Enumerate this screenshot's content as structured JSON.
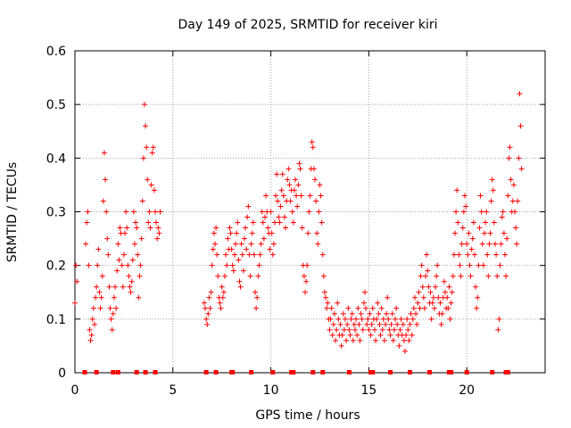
{
  "chart_data": {
    "type": "scatter",
    "title": "Day 149 of 2025, SRMTID for receiver kiri",
    "xlabel": "GPS time / hours",
    "ylabel": "SRMTID / TECUs",
    "xlim": [
      0,
      24
    ],
    "ylim": [
      0,
      0.6
    ],
    "x_ticks": [
      "0",
      "5",
      "10",
      "15",
      "20"
    ],
    "x_tick_values": [
      0,
      5,
      10,
      15,
      20
    ],
    "y_ticks": [
      "0",
      "0.1",
      "0.2",
      "0.3",
      "0.4",
      "0.5",
      "0.6"
    ],
    "y_tick_values": [
      0,
      0.1,
      0.2,
      0.3,
      0.4,
      0.5,
      0.6
    ],
    "grid": true,
    "marker": "+",
    "series": [
      {
        "name": "SRMTID",
        "color": "#ff0000",
        "segments": [
          {
            "x": [
              0.0,
              0.05,
              0.1
            ],
            "y": [
              0.13,
              0.2,
              0.17
            ]
          },
          {
            "x": [
              0.55,
              0.6,
              0.65,
              0.7,
              0.75,
              0.8,
              0.85,
              0.9,
              0.95,
              1.0,
              1.05,
              1.1,
              1.15,
              1.2,
              1.25,
              1.3,
              1.35,
              1.4,
              1.45,
              1.5,
              1.55,
              1.6,
              1.65,
              1.7,
              1.75,
              1.8,
              1.85,
              1.9,
              1.95,
              2.0,
              2.05,
              2.1,
              2.15,
              2.2,
              2.25,
              2.3,
              2.35,
              2.4,
              2.45,
              2.5,
              2.55,
              2.6,
              2.65,
              2.7,
              2.75,
              2.8,
              2.85,
              2.9,
              2.95,
              3.0,
              3.05,
              3.1,
              3.15,
              3.2,
              3.25,
              3.3,
              3.35,
              3.4,
              3.45,
              3.5,
              3.55,
              3.6,
              3.65,
              3.7,
              3.75,
              3.8,
              3.85,
              3.9,
              3.95,
              4.0,
              4.05,
              4.1,
              4.15,
              4.2,
              4.25,
              4.3,
              4.35
            ],
            "y": [
              0.24,
              0.28,
              0.3,
              0.2,
              0.08,
              0.06,
              0.07,
              0.1,
              0.12,
              0.09,
              0.14,
              0.16,
              0.2,
              0.23,
              0.15,
              0.12,
              0.14,
              0.18,
              0.32,
              0.41,
              0.36,
              0.3,
              0.25,
              0.22,
              0.16,
              0.12,
              0.1,
              0.08,
              0.11,
              0.14,
              0.16,
              0.12,
              0.19,
              0.24,
              0.21,
              0.27,
              0.26,
              0.2,
              0.16,
              0.22,
              0.26,
              0.3,
              0.27,
              0.2,
              0.18,
              0.16,
              0.15,
              0.17,
              0.21,
              0.3,
              0.24,
              0.28,
              0.27,
              0.22,
              0.14,
              0.18,
              0.2,
              0.25,
              0.32,
              0.4,
              0.5,
              0.46,
              0.42,
              0.36,
              0.28,
              0.3,
              0.27,
              0.35,
              0.41,
              0.42,
              0.34,
              0.3,
              0.28,
              0.25,
              0.27,
              0.26,
              0.3
            ]
          },
          {
            "x": [
              6.6,
              6.65,
              6.7,
              6.75,
              6.8,
              6.85,
              6.9,
              6.95,
              7.0,
              7.05,
              7.1,
              7.15,
              7.2,
              7.25,
              7.3,
              7.35,
              7.4,
              7.45,
              7.5,
              7.55,
              7.6,
              7.65,
              7.7,
              7.75,
              7.8,
              7.85,
              7.9,
              7.95,
              8.0,
              8.05,
              8.1,
              8.15,
              8.2,
              8.25,
              8.3,
              8.35,
              8.4,
              8.45,
              8.5,
              8.55,
              8.6,
              8.65,
              8.7,
              8.75,
              8.8,
              8.85,
              8.9,
              8.95,
              9.0,
              9.05,
              9.1,
              9.15,
              9.2,
              9.25,
              9.3,
              9.35,
              9.4,
              9.45,
              9.5,
              9.55,
              9.6,
              9.65,
              9.7,
              9.75,
              9.8,
              9.85,
              9.9,
              9.95,
              10.0,
              10.05,
              10.1,
              10.15,
              10.2,
              10.25,
              10.3,
              10.35,
              10.4,
              10.45,
              10.5,
              10.55,
              10.6,
              10.65,
              10.7,
              10.75,
              10.8,
              10.85,
              10.9,
              10.95,
              11.0,
              11.05,
              11.1,
              11.15,
              11.2,
              11.25,
              11.3,
              11.35,
              11.4,
              11.45,
              11.5,
              11.55,
              11.6,
              11.65,
              11.7,
              11.75,
              11.8,
              11.85,
              11.9,
              11.95,
              12.0,
              12.05,
              12.1,
              12.15,
              12.2,
              12.25,
              12.3,
              12.35,
              12.4,
              12.45,
              12.5,
              12.55,
              12.6,
              12.65,
              12.7,
              12.75,
              12.8,
              12.85,
              12.9,
              12.95
            ],
            "y": [
              0.13,
              0.12,
              0.1,
              0.09,
              0.11,
              0.14,
              0.12,
              0.15,
              0.2,
              0.23,
              0.26,
              0.24,
              0.27,
              0.22,
              0.18,
              0.14,
              0.13,
              0.12,
              0.16,
              0.14,
              0.15,
              0.18,
              0.22,
              0.2,
              0.25,
              0.23,
              0.27,
              0.26,
              0.23,
              0.2,
              0.19,
              0.22,
              0.24,
              0.26,
              0.28,
              0.21,
              0.17,
              0.16,
              0.24,
              0.22,
              0.19,
              0.25,
              0.27,
              0.23,
              0.29,
              0.31,
              0.22,
              0.18,
              0.24,
              0.26,
              0.28,
              0.22,
              0.15,
              0.12,
              0.14,
              0.18,
              0.2,
              0.22,
              0.24,
              0.3,
              0.28,
              0.25,
              0.29,
              0.33,
              0.3,
              0.27,
              0.26,
              0.23,
              0.3,
              0.26,
              0.22,
              0.24,
              0.28,
              0.33,
              0.37,
              0.32,
              0.29,
              0.28,
              0.31,
              0.34,
              0.37,
              0.33,
              0.29,
              0.27,
              0.32,
              0.36,
              0.38,
              0.35,
              0.32,
              0.34,
              0.3,
              0.28,
              0.34,
              0.36,
              0.33,
              0.31,
              0.35,
              0.39,
              0.38,
              0.33,
              0.27,
              0.2,
              0.18,
              0.15,
              0.17,
              0.2,
              0.26,
              0.3,
              0.33,
              0.38,
              0.43,
              0.42,
              0.38,
              0.36,
              0.32,
              0.26,
              0.24,
              0.3,
              0.35,
              0.33,
              0.28,
              0.22,
              0.18,
              0.15,
              0.14,
              0.12,
              0.13,
              0.1
            ]
          },
          {
            "x": [
              13.0,
              13.05,
              13.1,
              13.15,
              13.2,
              13.25,
              13.3,
              13.35,
              13.4,
              13.45,
              13.5,
              13.55,
              13.6,
              13.65,
              13.7,
              13.75,
              13.8,
              13.85,
              13.9,
              13.95,
              14.0,
              14.05,
              14.1,
              14.15,
              14.2,
              14.25,
              14.3,
              14.35,
              14.4,
              14.45,
              14.5,
              14.55,
              14.6,
              14.65,
              14.7,
              14.75,
              14.8,
              14.85,
              14.9,
              14.95,
              15.0,
              15.05,
              15.1,
              15.15,
              15.2,
              15.25,
              15.3,
              15.35,
              15.4,
              15.45,
              15.5,
              15.55,
              15.6,
              15.65,
              15.7,
              15.75,
              15.8,
              15.85,
              15.9,
              15.95,
              16.0,
              16.05,
              16.1,
              16.15,
              16.2,
              16.25,
              16.3,
              16.35,
              16.4,
              16.45,
              16.5,
              16.55,
              16.6,
              16.65,
              16.7,
              16.75,
              16.8,
              16.85,
              16.9,
              16.95,
              17.0,
              17.05,
              17.1,
              17.15,
              17.2,
              17.25,
              17.3,
              17.35,
              17.4,
              17.45,
              17.5,
              17.55,
              17.6,
              17.65,
              17.7,
              17.75,
              17.8,
              17.85,
              17.9,
              17.95,
              18.0,
              18.05,
              18.1,
              18.15,
              18.2,
              18.25,
              18.3,
              18.35,
              18.4,
              18.45,
              18.5,
              18.55,
              18.6,
              18.65,
              18.7,
              18.75,
              18.8,
              18.85,
              18.9,
              18.95
            ],
            "y": [
              0.08,
              0.1,
              0.12,
              0.07,
              0.09,
              0.11,
              0.06,
              0.08,
              0.13,
              0.1,
              0.07,
              0.09,
              0.05,
              0.07,
              0.11,
              0.08,
              0.1,
              0.06,
              0.09,
              0.12,
              0.08,
              0.07,
              0.1,
              0.11,
              0.06,
              0.09,
              0.08,
              0.1,
              0.07,
              0.12,
              0.09,
              0.06,
              0.11,
              0.1,
              0.08,
              0.13,
              0.15,
              0.12,
              0.09,
              0.1,
              0.08,
              0.11,
              0.07,
              0.09,
              0.12,
              0.1,
              0.08,
              0.06,
              0.1,
              0.13,
              0.11,
              0.09,
              0.07,
              0.12,
              0.08,
              0.1,
              0.06,
              0.09,
              0.11,
              0.14,
              0.1,
              0.08,
              0.07,
              0.09,
              0.11,
              0.06,
              0.08,
              0.1,
              0.12,
              0.09,
              0.07,
              0.05,
              0.08,
              0.1,
              0.07,
              0.09,
              0.06,
              0.04,
              0.07,
              0.1,
              0.08,
              0.06,
              0.09,
              0.11,
              0.07,
              0.1,
              0.12,
              0.14,
              0.11,
              0.09,
              0.13,
              0.15,
              0.12,
              0.18,
              0.2,
              0.16,
              0.14,
              0.12,
              0.18,
              0.22,
              0.19,
              0.16,
              0.13,
              0.15,
              0.1,
              0.13,
              0.14,
              0.12,
              0.16,
              0.18,
              0.2,
              0.14,
              0.11,
              0.13,
              0.09,
              0.11,
              0.14,
              0.17,
              0.15,
              0.12
            ]
          },
          {
            "x": [
              19.0,
              19.05,
              19.1,
              19.15,
              19.2,
              19.25,
              19.3,
              19.35,
              19.4,
              19.45,
              19.5,
              19.55,
              19.6,
              19.65,
              19.7,
              19.75,
              19.8,
              19.85,
              19.9,
              19.95,
              20.0,
              20.05,
              20.1,
              20.15,
              20.2,
              20.25,
              20.3,
              20.35,
              20.4,
              20.45,
              20.5,
              20.55,
              20.6,
              20.65,
              20.7,
              20.75,
              20.8,
              20.85,
              20.9,
              20.95,
              21.0,
              21.05,
              21.1,
              21.15,
              21.2,
              21.25,
              21.3,
              21.35,
              21.4,
              21.45,
              21.5,
              21.55,
              21.6,
              21.65,
              21.7,
              21.75,
              21.8,
              21.85,
              21.9,
              21.95,
              22.0,
              22.05,
              22.1,
              22.15,
              22.2,
              22.25,
              22.3,
              22.35,
              22.4,
              22.45,
              22.5,
              22.55,
              22.6,
              22.65,
              22.7,
              22.75,
              22.8
            ],
            "y": [
              0.14,
              0.12,
              0.16,
              0.1,
              0.13,
              0.15,
              0.18,
              0.22,
              0.26,
              0.3,
              0.34,
              0.28,
              0.22,
              0.2,
              0.18,
              0.24,
              0.27,
              0.3,
              0.33,
              0.31,
              0.24,
              0.22,
              0.26,
              0.2,
              0.18,
              0.23,
              0.25,
              0.28,
              0.22,
              0.16,
              0.12,
              0.14,
              0.2,
              0.27,
              0.33,
              0.3,
              0.24,
              0.2,
              0.26,
              0.28,
              0.3,
              0.22,
              0.18,
              0.24,
              0.26,
              0.32,
              0.36,
              0.34,
              0.28,
              0.24,
              0.22,
              0.18,
              0.08,
              0.1,
              0.2,
              0.24,
              0.29,
              0.3,
              0.26,
              0.22,
              0.18,
              0.25,
              0.33,
              0.4,
              0.42,
              0.36,
              0.3,
              0.32,
              0.35,
              0.3,
              0.27,
              0.24,
              0.32,
              0.4,
              0.52,
              0.46,
              0.38
            ]
          }
        ]
      }
    ],
    "satellite_markers_x": [
      0.5,
      1.1,
      1.95,
      2.2,
      3.15,
      3.6,
      4.1,
      6.7,
      7.2,
      8.0,
      8.05,
      9.0,
      10.1,
      11.05,
      11.15,
      12.15,
      12.65,
      14.0,
      15.1,
      15.2,
      16.1,
      17.1,
      18.1,
      19.1,
      19.2,
      20.0,
      21.3,
      22.0,
      22.1
    ]
  }
}
